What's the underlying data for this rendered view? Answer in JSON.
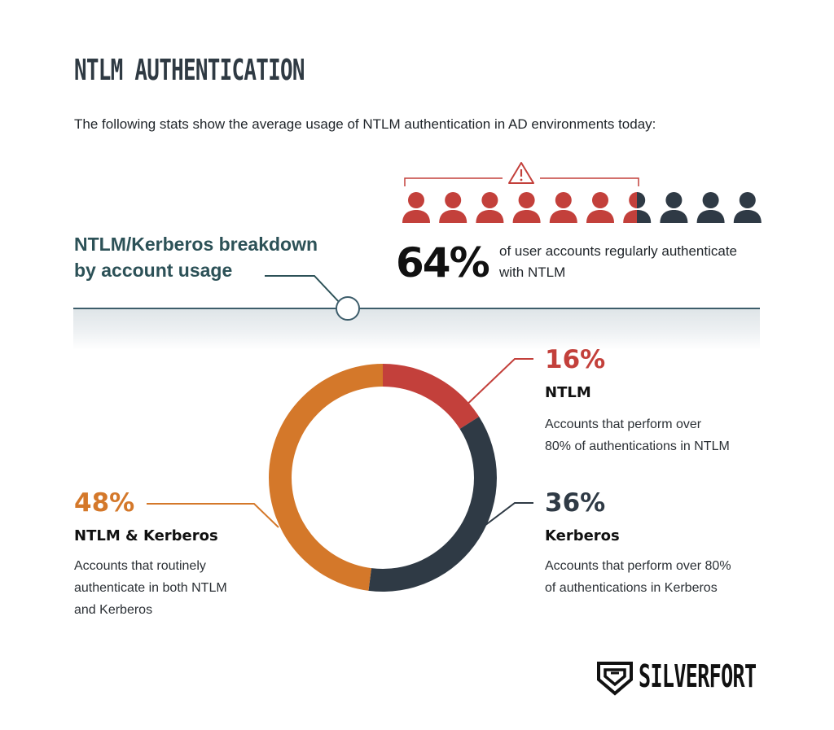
{
  "header": {
    "title": "NTLM AUTHENTICATION",
    "subtitle": "The following stats show the average usage of NTLM authentication in AD environments today:"
  },
  "breakdown": {
    "line1": "NTLM/Kerberos breakdown",
    "line2": "by account usage"
  },
  "accounts_stat": {
    "percent": "64%",
    "desc_line1": "of user accounts regularly authenticate",
    "desc_line2": "with NTLM",
    "icon": "warning-icon",
    "people_total": 10,
    "people_highlighted": 6.4
  },
  "colors": {
    "ntlm": "#c3403b",
    "kerberos": "#2f3a45",
    "both": "#d4782a",
    "teal": "#2c5157",
    "line": "#3d5d6b"
  },
  "chart_data": {
    "type": "pie",
    "donut": true,
    "slices": [
      {
        "label": "NTLM",
        "value": 16,
        "color": "#c3403b"
      },
      {
        "label": "Kerberos",
        "value": 36,
        "color": "#2f3a45"
      },
      {
        "label": "NTLM & Kerberos",
        "value": 48,
        "color": "#d4782a"
      }
    ]
  },
  "segments": {
    "ntlm": {
      "percent": "16%",
      "label": "NTLM",
      "desc_line1": "Accounts that perform over",
      "desc_line2": "80% of authentications in NTLM"
    },
    "kerberos": {
      "percent": "36%",
      "label": "Kerberos",
      "desc_line1": "Accounts that perform over 80%",
      "desc_line2": "of authentications in Kerberos"
    },
    "both": {
      "percent": "48%",
      "label": "NTLM & Kerberos",
      "desc_line1": "Accounts that routinely",
      "desc_line2": "authenticate in both NTLM",
      "desc_line3": "and Kerberos"
    }
  },
  "brand": {
    "name": "SILVERFORT",
    "icon": "silverfort-logo-icon"
  }
}
